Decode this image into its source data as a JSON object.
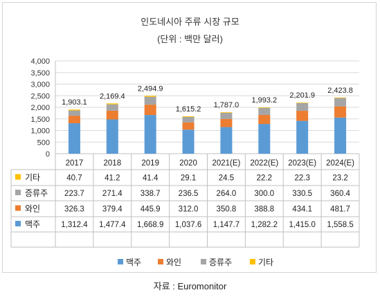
{
  "title": "인도네시아 주류 시장 규모",
  "subtitle": "(단위 : 백만 달러)",
  "source": "자료 : Euromonitor",
  "colors": {
    "beer": "#5b9bd5",
    "wine": "#ed7d31",
    "spirits": "#a5a5a5",
    "other": "#ffc000"
  },
  "chart_data": {
    "type": "bar",
    "stacked": true,
    "categories": [
      "2017",
      "2018",
      "2019",
      "2020",
      "2021(E)",
      "2022(E)",
      "2023(E)",
      "2024(E)"
    ],
    "totals": [
      "1,903.1",
      "2,169.4",
      "2,494.9",
      "1,615.2",
      "1,787.0",
      "1,993.2",
      "2,201.9",
      "2,423.8"
    ],
    "y_ticks": [
      "0",
      "500",
      "1,000",
      "1,500",
      "2,000",
      "2,500",
      "3,000",
      "3,500",
      "4,000"
    ],
    "ylim": [
      0,
      4000
    ],
    "grid": true,
    "legend_position": "bottom",
    "series": [
      {
        "key": "beer",
        "name": "맥주",
        "values": [
          1312.4,
          1477.4,
          1668.9,
          1037.6,
          1147.7,
          1282.2,
          1415.0,
          1558.5
        ],
        "labels": [
          "1,312.4",
          "1,477.4",
          "1,668.9",
          "1,037.6",
          "1,147.7",
          "1,282.2",
          "1,415.0",
          "1,558.5"
        ]
      },
      {
        "key": "wine",
        "name": "와인",
        "values": [
          326.3,
          379.4,
          445.9,
          312.0,
          350.8,
          388.8,
          434.1,
          481.7
        ],
        "labels": [
          "326.3",
          "379.4",
          "445.9",
          "312.0",
          "350.8",
          "388.8",
          "434.1",
          "481.7"
        ]
      },
      {
        "key": "spirits",
        "name": "증류주",
        "values": [
          223.7,
          271.4,
          338.7,
          236.5,
          264.0,
          300.0,
          330.5,
          360.4
        ],
        "labels": [
          "223.7",
          "271.4",
          "338.7",
          "236.5",
          "264.0",
          "300.0",
          "330.5",
          "360.4"
        ]
      },
      {
        "key": "other",
        "name": "기타",
        "values": [
          40.7,
          41.2,
          41.4,
          29.1,
          24.5,
          22.2,
          22.3,
          23.2
        ],
        "labels": [
          "40.7",
          "41.2",
          "41.4",
          "29.1",
          "24.5",
          "22.2",
          "22.3",
          "23.2"
        ]
      }
    ],
    "table_row_order": [
      "other",
      "spirits",
      "wine",
      "beer"
    ],
    "legend_order": [
      "beer",
      "wine",
      "spirits",
      "other"
    ]
  }
}
